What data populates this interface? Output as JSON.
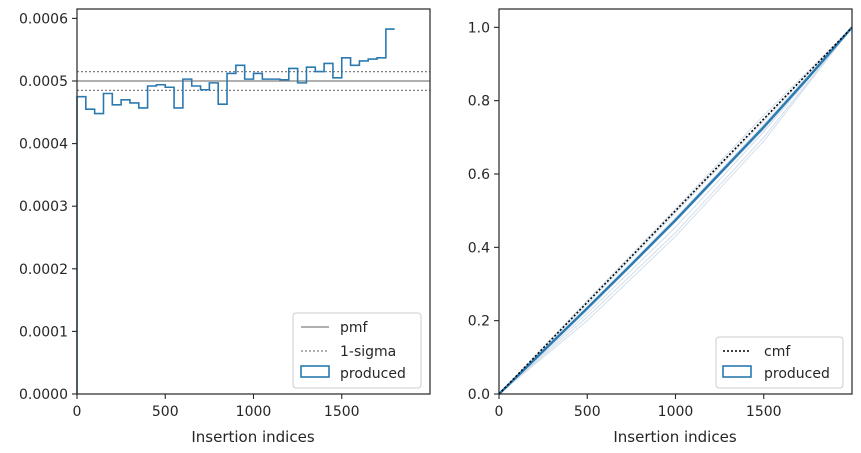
{
  "chart_data": [
    {
      "type": "step",
      "xlabel": "Insertion indices",
      "ylabel": "",
      "xlim": [
        0,
        2000
      ],
      "ylim": [
        0,
        0.000615
      ],
      "xticks": [
        0,
        500,
        1000,
        1500
      ],
      "yticks": [
        0,
        0.0001,
        0.0002,
        0.0003,
        0.0004,
        0.0005,
        0.0006
      ],
      "ytick_labels": [
        "0.0000",
        "0.0001",
        "0.0002",
        "0.0003",
        "0.0004",
        "0.0005",
        "0.0006"
      ],
      "reference_lines": [
        {
          "name": "pmf",
          "value": 0.0005,
          "style": "solid",
          "color": "#808080"
        },
        {
          "name": "1-sigma",
          "values": [
            0.000485,
            0.000515
          ],
          "style": "dotted",
          "color": "#808080"
        }
      ],
      "series": [
        {
          "name": "produced",
          "color": "#2a7ab0",
          "bin_width": 50,
          "values": [
            0.000475,
            0.000455,
            0.000448,
            0.00048,
            0.000462,
            0.00047,
            0.000465,
            0.000457,
            0.000492,
            0.000494,
            0.00049,
            0.000457,
            0.000503,
            0.000492,
            0.000486,
            0.000497,
            0.000463,
            0.000512,
            0.000525,
            0.000503,
            0.000512,
            0.000503,
            0.000503,
            0.000502,
            0.00052,
            0.000497,
            0.000522,
            0.000515,
            0.000528,
            0.000505,
            0.000537,
            0.000525,
            0.000532,
            0.000535,
            0.000537,
            0.000583
          ]
        }
      ],
      "legend": {
        "placement": "lower right",
        "entries": [
          "pmf",
          "1-sigma",
          "produced"
        ]
      },
      "grid": false
    },
    {
      "type": "line",
      "xlabel": "Insertion indices",
      "ylabel": "",
      "xlim": [
        0,
        2000
      ],
      "ylim": [
        0,
        1.05
      ],
      "xticks": [
        0,
        500,
        1000,
        1500
      ],
      "yticks": [
        0.0,
        0.2,
        0.4,
        0.6,
        0.8,
        1.0
      ],
      "ytick_labels": [
        "0.0",
        "0.2",
        "0.4",
        "0.6",
        "0.8",
        "1.0"
      ],
      "series": [
        {
          "name": "cmf",
          "style": "dotted",
          "color": "#000000",
          "x": [
            0,
            2000
          ],
          "y": [
            0,
            1
          ]
        },
        {
          "name": "produced",
          "color": "#2a7ab0",
          "x": [
            0,
            250,
            500,
            750,
            1000,
            1250,
            1500,
            1750,
            2000
          ],
          "y": [
            0,
            0.117,
            0.234,
            0.353,
            0.474,
            0.601,
            0.728,
            0.862,
            1.0
          ]
        }
      ],
      "background_curves": {
        "color": "#c7d6e6",
        "curves": [
          {
            "x": [
              0,
              500,
              1000,
              1500,
              2000
            ],
            "y": [
              0,
              0.22,
              0.455,
              0.715,
              1.0
            ]
          },
          {
            "x": [
              0,
              500,
              1000,
              1500,
              2000
            ],
            "y": [
              0,
              0.245,
              0.495,
              0.745,
              1.0
            ]
          },
          {
            "x": [
              0,
              500,
              1000,
              1500,
              2000
            ],
            "y": [
              0,
              0.21,
              0.44,
              0.7,
              1.0
            ]
          },
          {
            "x": [
              0,
              500,
              1000,
              1500,
              2000
            ],
            "y": [
              0,
              0.255,
              0.505,
              0.76,
              1.0
            ]
          },
          {
            "x": [
              0,
              500,
              1000,
              1500,
              2000
            ],
            "y": [
              0,
              0.228,
              0.47,
              0.722,
              1.0
            ]
          },
          {
            "x": [
              0,
              500,
              1000,
              1500,
              2000
            ],
            "y": [
              0,
              0.238,
              0.48,
              0.735,
              1.0
            ]
          },
          {
            "x": [
              0,
              500,
              1000,
              1500,
              2000
            ],
            "y": [
              0,
              0.2,
              0.43,
              0.69,
              1.0
            ]
          }
        ]
      },
      "legend": {
        "placement": "lower right",
        "entries": [
          "cmf",
          "produced"
        ]
      },
      "grid": false
    }
  ]
}
